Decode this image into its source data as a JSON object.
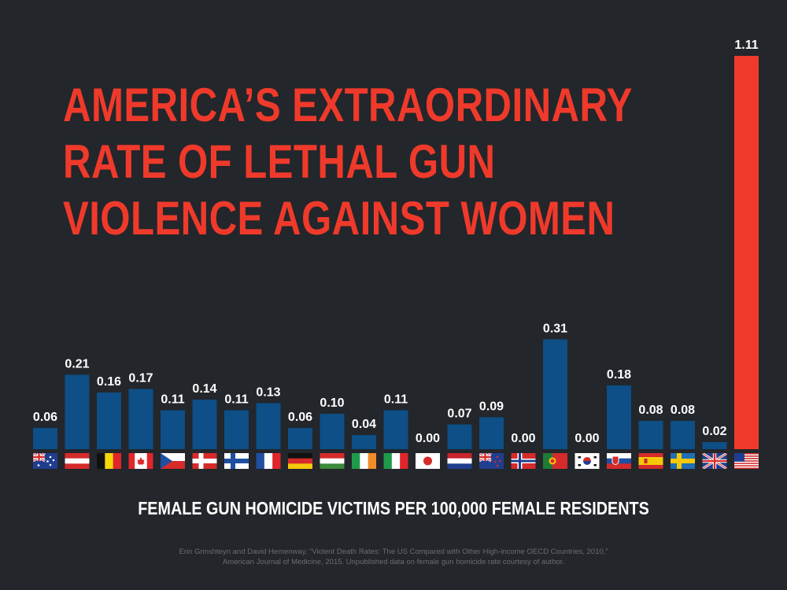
{
  "title": {
    "lines": [
      "AMERICA’S EXTRAORDINARY",
      "RATE OF LETHAL GUN",
      "VIOLENCE AGAINST WOMEN"
    ]
  },
  "source": {
    "lines": [
      "Erin Grinshteyn and David Hemenway, “Violent Death Rates: The US Compared with Other High-income OECD Countries, 2010,”",
      "American Journal of Medicine, 2015.  Unpublished data on female gun homicide rate courtesy of author."
    ]
  },
  "colors": {
    "background": "#23262b",
    "bar": "#0d4f86",
    "highlight_bar": "#ef3a2b",
    "title": "#ef3a2b",
    "value_label": "#ffffff",
    "source_text": "#6a6d73"
  },
  "chart_data": {
    "type": "bar",
    "xlabel": "FEMALE GUN HOMICIDE VICTIMS PER 100,000 FEMALE RESIDENTS",
    "ylabel": "",
    "ylim": [
      0,
      1.11
    ],
    "grid": false,
    "legend": "none",
    "categories": [
      "Australia",
      "Austria",
      "Belgium",
      "Canada",
      "Czech Republic",
      "Denmark",
      "Finland",
      "France",
      "Germany",
      "Hungary",
      "Ireland",
      "Italy",
      "Japan",
      "Netherlands",
      "New Zealand",
      "Norway",
      "Portugal",
      "South Korea",
      "Slovakia",
      "Spain",
      "Sweden",
      "United Kingdom",
      "United States"
    ],
    "values": [
      0.06,
      0.21,
      0.16,
      0.17,
      0.11,
      0.14,
      0.11,
      0.13,
      0.06,
      0.1,
      0.04,
      0.11,
      0.0,
      0.07,
      0.09,
      0.0,
      0.31,
      0.0,
      0.18,
      0.08,
      0.08,
      0.02,
      1.11
    ],
    "value_labels": [
      "0.06",
      "0.21",
      "0.16",
      "0.17",
      "0.11",
      "0.14",
      "0.11",
      "0.13",
      "0.06",
      "0.10",
      "0.04",
      "0.11",
      "0.00",
      "0.07",
      "0.09",
      "0.00",
      "0.31",
      "0.00",
      "0.18",
      "0.08",
      "0.08",
      "0.02",
      "1.11"
    ],
    "flag_icons": [
      "flag-australia-icon",
      "flag-austria-icon",
      "flag-belgium-icon",
      "flag-canada-icon",
      "flag-czech-icon",
      "flag-denmark-icon",
      "flag-finland-icon",
      "flag-france-icon",
      "flag-germany-icon",
      "flag-hungary-icon",
      "flag-ireland-icon",
      "flag-italy-icon",
      "flag-japan-icon",
      "flag-netherlands-icon",
      "flag-new-zealand-icon",
      "flag-norway-icon",
      "flag-portugal-icon",
      "flag-south-korea-icon",
      "flag-slovakia-icon",
      "flag-spain-icon",
      "flag-sweden-icon",
      "flag-uk-icon",
      "flag-usa-icon"
    ],
    "highlight": "United States"
  }
}
